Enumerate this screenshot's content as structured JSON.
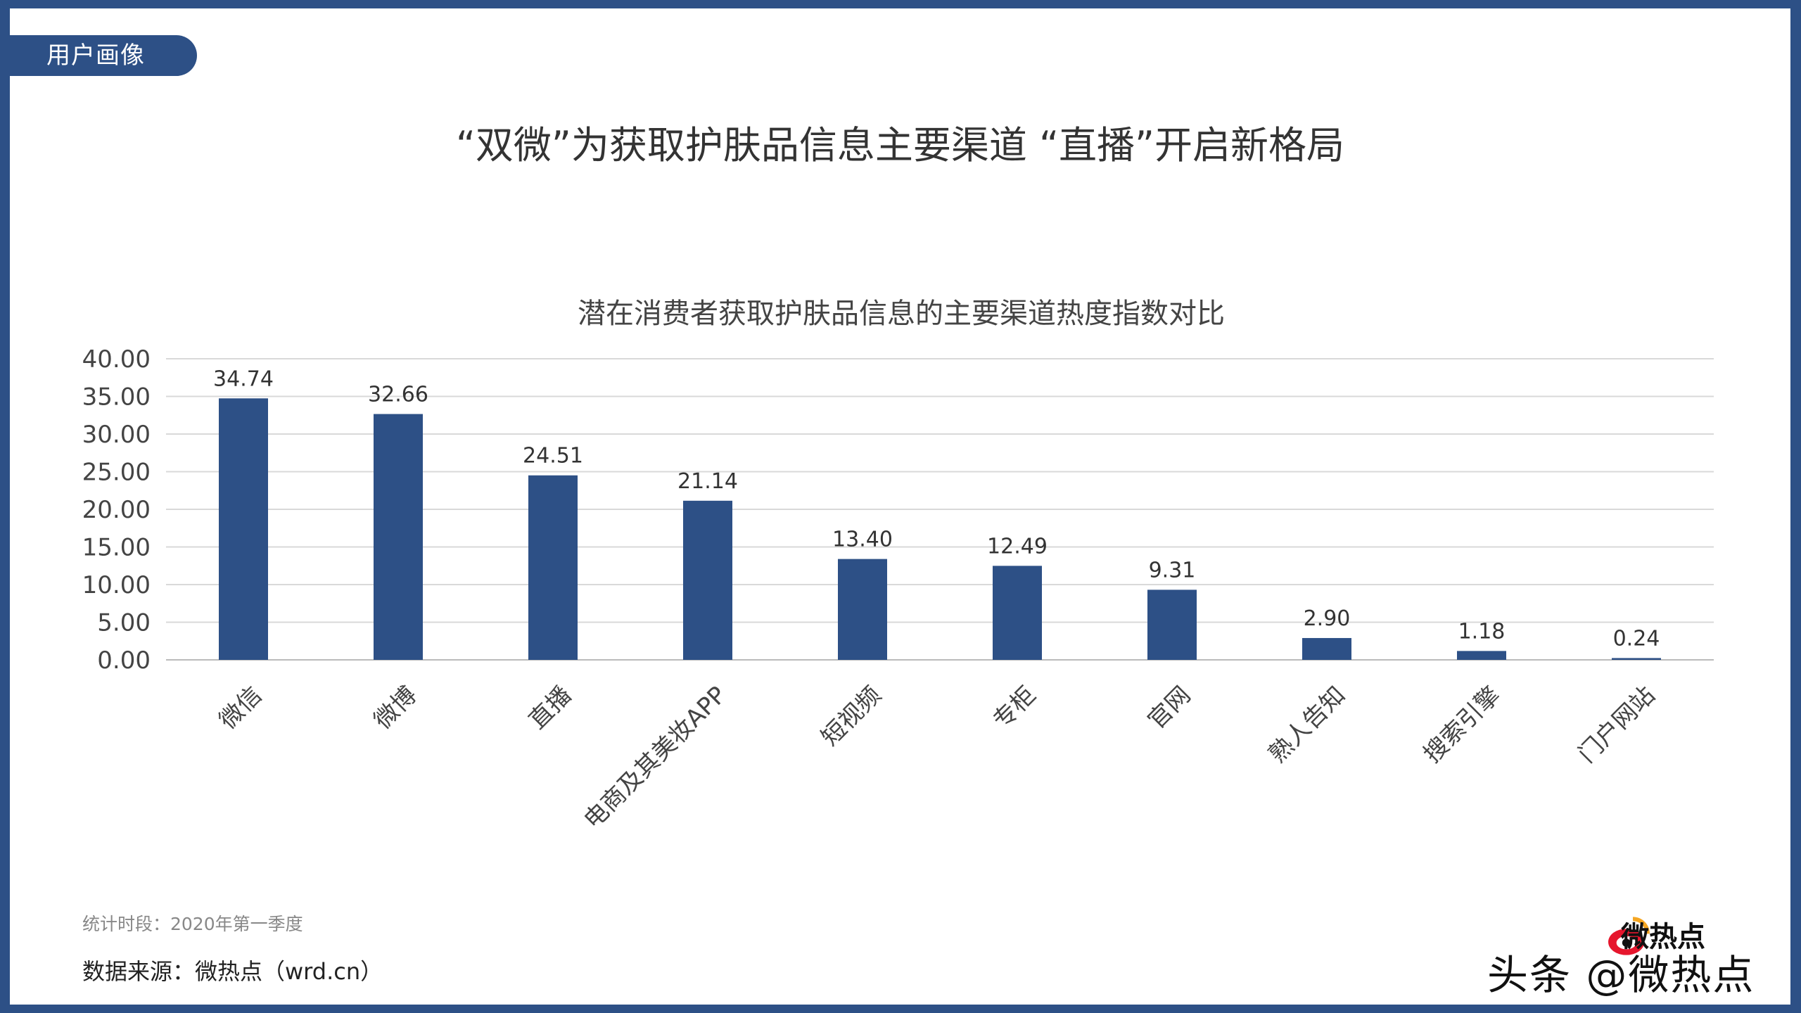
{
  "tag": "用户画像",
  "main_title": "“双微”为获取护肤品信息主要渠道 “直播”开启新格局",
  "chart_data": {
    "type": "bar",
    "title": "潜在消费者获取护肤品信息的主要渠道热度指数对比",
    "categories": [
      "微信",
      "微博",
      "直播",
      "电商及其美妆APP",
      "短视频",
      "专柜",
      "官网",
      "熟人告知",
      "搜索引擎",
      "门户网站"
    ],
    "values": [
      34.74,
      32.66,
      24.51,
      21.14,
      13.4,
      12.49,
      9.31,
      2.9,
      1.18,
      0.24
    ],
    "value_labels": [
      "34.74",
      "32.66",
      "24.51",
      "21.14",
      "13.40",
      "12.49",
      "9.31",
      "2.90",
      "1.18",
      "0.24"
    ],
    "y_ticks": [
      "0.00",
      "5.00",
      "10.00",
      "15.00",
      "20.00",
      "25.00",
      "30.00",
      "35.00",
      "40.00"
    ],
    "ylim": [
      0,
      40
    ],
    "grid": true,
    "legend": "none",
    "bar_color": "#2d5086"
  },
  "footer": {
    "period": "统计时段：2020年第一季度",
    "source": "数据来源：微热点（wrd.cn）"
  },
  "watermark": {
    "brand": "微热点",
    "text": "头条 @微热点"
  }
}
